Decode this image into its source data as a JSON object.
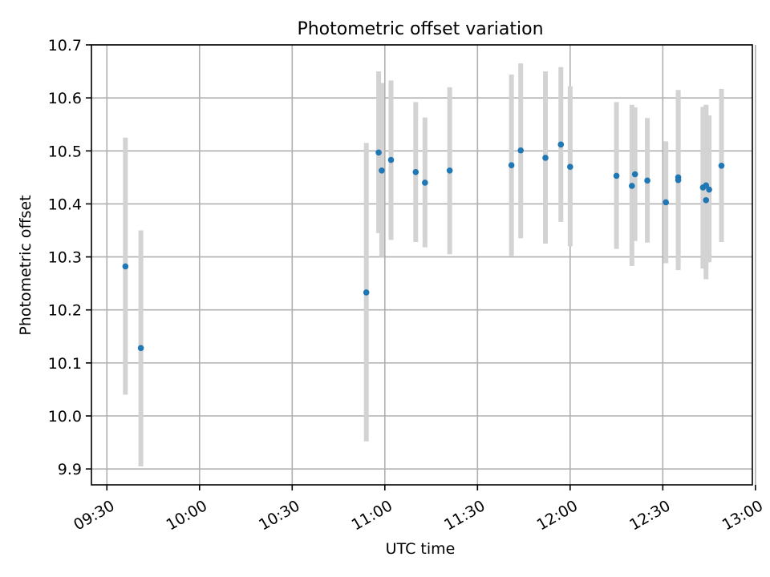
{
  "chart_data": {
    "type": "scatter",
    "title": "Photometric offset variation",
    "xlabel": "UTC time",
    "ylabel": "Photometric offset",
    "x_is_time": true,
    "xlim": [
      "09:25",
      "12:59"
    ],
    "ylim": [
      9.87,
      10.7
    ],
    "x_ticks": [
      "09:30",
      "10:00",
      "10:30",
      "11:00",
      "11:30",
      "12:00",
      "12:30",
      "13:00"
    ],
    "y_ticks": [
      "9.9",
      "10.0",
      "10.1",
      "10.2",
      "10.3",
      "10.4",
      "10.5",
      "10.6",
      "10.7"
    ],
    "grid": true,
    "colors": {
      "point": "#1f77b4",
      "errorbar": "#d3d3d3",
      "grid": "#b0b0b0"
    },
    "series": [
      {
        "points": [
          {
            "t": "09:36",
            "y": 10.282,
            "lo": 10.04,
            "hi": 10.525
          },
          {
            "t": "09:41",
            "y": 10.128,
            "lo": 9.905,
            "hi": 10.35
          },
          {
            "t": "10:54",
            "y": 10.233,
            "lo": 9.952,
            "hi": 10.515
          },
          {
            "t": "10:58",
            "y": 10.497,
            "lo": 10.345,
            "hi": 10.65
          },
          {
            "t": "10:59",
            "y": 10.463,
            "lo": 10.3,
            "hi": 10.628
          },
          {
            "t": "11:02",
            "y": 10.483,
            "lo": 10.332,
            "hi": 10.633
          },
          {
            "t": "11:10",
            "y": 10.46,
            "lo": 10.328,
            "hi": 10.592
          },
          {
            "t": "11:13",
            "y": 10.44,
            "lo": 10.318,
            "hi": 10.563
          },
          {
            "t": "11:21",
            "y": 10.463,
            "lo": 10.305,
            "hi": 10.62
          },
          {
            "t": "11:41",
            "y": 10.473,
            "lo": 10.302,
            "hi": 10.644
          },
          {
            "t": "11:44",
            "y": 10.501,
            "lo": 10.335,
            "hi": 10.665
          },
          {
            "t": "11:52",
            "y": 10.487,
            "lo": 10.325,
            "hi": 10.65
          },
          {
            "t": "11:57",
            "y": 10.512,
            "lo": 10.366,
            "hi": 10.658
          },
          {
            "t": "12:00",
            "y": 10.47,
            "lo": 10.32,
            "hi": 10.622
          },
          {
            "t": "12:15",
            "y": 10.453,
            "lo": 10.315,
            "hi": 10.592
          },
          {
            "t": "12:20",
            "y": 10.434,
            "lo": 10.283,
            "hi": 10.587
          },
          {
            "t": "12:21",
            "y": 10.456,
            "lo": 10.33,
            "hi": 10.582
          },
          {
            "t": "12:25",
            "y": 10.444,
            "lo": 10.327,
            "hi": 10.562
          },
          {
            "t": "12:31",
            "y": 10.403,
            "lo": 10.288,
            "hi": 10.518
          },
          {
            "t": "12:35",
            "y": 10.445,
            "lo": 10.275,
            "hi": 10.615
          },
          {
            "t": "12:35",
            "y": 10.45,
            "lo": 10.29,
            "hi": 10.61
          },
          {
            "t": "12:43",
            "y": 10.431,
            "lo": 10.278,
            "hi": 10.583
          },
          {
            "t": "12:44",
            "y": 10.407,
            "lo": 10.258,
            "hi": 10.587
          },
          {
            "t": "12:44",
            "y": 10.435,
            "lo": 10.285,
            "hi": 10.585
          },
          {
            "t": "12:45",
            "y": 10.427,
            "lo": 10.29,
            "hi": 10.567
          },
          {
            "t": "12:49",
            "y": 10.472,
            "lo": 10.328,
            "hi": 10.617
          }
        ]
      }
    ]
  }
}
